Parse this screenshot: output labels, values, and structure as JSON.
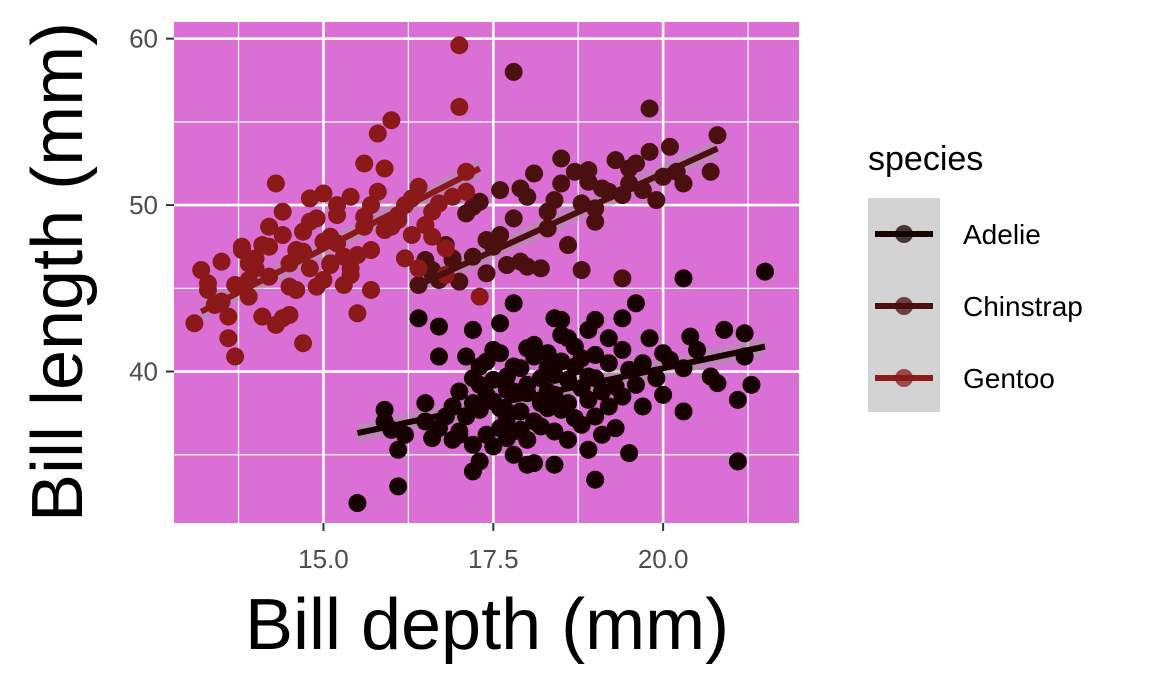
{
  "chart_data": {
    "type": "scatter",
    "xlabel": "Bill depth (mm)",
    "ylabel": "Bill length (mm)",
    "xlim": [
      12.8,
      22.0
    ],
    "ylim": [
      30.9,
      61.0
    ],
    "x_ticks": [
      15.0,
      17.5,
      20.0
    ],
    "x_tick_labels": [
      "15.0",
      "17.5",
      "20.0"
    ],
    "y_ticks": [
      40,
      50,
      60
    ],
    "y_tick_labels": [
      "40",
      "50",
      "60"
    ],
    "grid": true,
    "panel_background": "#da70d6",
    "grid_color": "#ffffff",
    "legend": {
      "title": "species",
      "position": "right",
      "key_background": "#d3d3d3"
    },
    "series": [
      {
        "name": "Adelie",
        "color": "#170000",
        "trend": {
          "x": [
            15.5,
            21.5
          ],
          "y": [
            36.3,
            41.5
          ]
        },
        "points": [
          [
            15.5,
            32.1
          ],
          [
            15.9,
            37.7
          ],
          [
            16.0,
            36.5
          ],
          [
            16.1,
            33.1
          ],
          [
            16.2,
            36.2
          ],
          [
            16.5,
            38.1
          ],
          [
            16.6,
            36.0
          ],
          [
            16.7,
            36.6
          ],
          [
            16.9,
            37.9
          ],
          [
            16.9,
            35.9
          ],
          [
            17.0,
            38.8
          ],
          [
            17.0,
            36.2
          ],
          [
            17.1,
            37.3
          ],
          [
            17.1,
            40.9
          ],
          [
            17.2,
            35.6
          ],
          [
            17.2,
            38.1
          ],
          [
            17.2,
            34.0
          ],
          [
            17.3,
            37.7
          ],
          [
            17.3,
            39.2
          ],
          [
            17.3,
            34.6
          ],
          [
            17.4,
            40.6
          ],
          [
            17.4,
            38.6
          ],
          [
            17.4,
            36.2
          ],
          [
            17.5,
            38.2
          ],
          [
            17.5,
            35.5
          ],
          [
            17.5,
            39.5
          ],
          [
            17.6,
            37.8
          ],
          [
            17.6,
            41.1
          ],
          [
            17.6,
            36.6
          ],
          [
            17.7,
            38.9
          ],
          [
            17.7,
            37.2
          ],
          [
            17.7,
            39.7
          ],
          [
            17.8,
            40.3
          ],
          [
            17.8,
            36.4
          ],
          [
            17.8,
            38.8
          ],
          [
            17.8,
            35.0
          ],
          [
            17.9,
            37.6
          ],
          [
            17.9,
            40.2
          ],
          [
            17.9,
            36.5
          ],
          [
            18.0,
            38.7
          ],
          [
            18.0,
            41.4
          ],
          [
            18.0,
            35.9
          ],
          [
            18.0,
            39.2
          ],
          [
            18.1,
            37.0
          ],
          [
            18.1,
            40.9
          ],
          [
            18.1,
            34.5
          ],
          [
            18.2,
            38.1
          ],
          [
            18.2,
            39.6
          ],
          [
            18.2,
            36.7
          ],
          [
            18.3,
            41.1
          ],
          [
            18.3,
            37.8
          ],
          [
            18.3,
            40.2
          ],
          [
            18.4,
            38.6
          ],
          [
            18.4,
            36.4
          ],
          [
            18.4,
            39.8
          ],
          [
            18.5,
            42.2
          ],
          [
            18.5,
            37.7
          ],
          [
            18.5,
            40.6
          ],
          [
            18.6,
            38.1
          ],
          [
            18.6,
            35.9
          ],
          [
            18.6,
            39.5
          ],
          [
            18.7,
            41.5
          ],
          [
            18.7,
            37.2
          ],
          [
            18.8,
            39.0
          ],
          [
            18.8,
            36.8
          ],
          [
            18.8,
            40.8
          ],
          [
            18.9,
            38.3
          ],
          [
            18.9,
            35.3
          ],
          [
            18.9,
            42.5
          ],
          [
            19.0,
            39.6
          ],
          [
            19.0,
            37.3
          ],
          [
            19.0,
            41.0
          ],
          [
            19.1,
            38.8
          ],
          [
            19.1,
            36.2
          ],
          [
            19.2,
            40.5
          ],
          [
            19.2,
            37.9
          ],
          [
            19.3,
            39.1
          ],
          [
            19.3,
            36.6
          ],
          [
            19.4,
            41.3
          ],
          [
            19.4,
            38.5
          ],
          [
            19.5,
            40.1
          ],
          [
            19.5,
            35.1
          ],
          [
            19.6,
            39.2
          ],
          [
            19.7,
            37.9
          ],
          [
            19.8,
            42.0
          ],
          [
            19.9,
            39.6
          ],
          [
            20.0,
            41.1
          ],
          [
            20.0,
            38.6
          ],
          [
            20.1,
            40.7
          ],
          [
            20.3,
            37.6
          ],
          [
            20.5,
            41.3
          ],
          [
            20.7,
            39.7
          ],
          [
            21.1,
            38.3
          ],
          [
            21.1,
            34.6
          ],
          [
            21.5,
            46.0
          ],
          [
            20.3,
            45.6
          ],
          [
            19.4,
            43.2
          ],
          [
            18.4,
            43.2
          ],
          [
            17.8,
            44.1
          ],
          [
            17.6,
            42.9
          ],
          [
            17.2,
            42.5
          ],
          [
            16.7,
            42.7
          ],
          [
            16.4,
            43.2
          ],
          [
            16.7,
            40.9
          ],
          [
            16.5,
            37.0
          ],
          [
            15.9,
            37.0
          ],
          [
            16.1,
            35.3
          ],
          [
            19.0,
            33.5
          ],
          [
            18.0,
            34.4
          ],
          [
            18.4,
            34.4
          ],
          [
            19.6,
            44.1
          ],
          [
            19.0,
            43.1
          ],
          [
            18.5,
            43.1
          ],
          [
            17.5,
            41.3
          ],
          [
            20.9,
            42.5
          ],
          [
            21.2,
            42.3
          ],
          [
            21.2,
            40.9
          ],
          [
            20.4,
            42.1
          ],
          [
            20.8,
            39.3
          ],
          [
            21.3,
            39.2
          ],
          [
            20.3,
            40.2
          ],
          [
            19.7,
            40.5
          ],
          [
            18.9,
            39.7
          ],
          [
            18.3,
            38.8
          ],
          [
            17.7,
            37.6
          ],
          [
            17.0,
            36.4
          ],
          [
            16.8,
            37.3
          ],
          [
            17.2,
            39.6
          ],
          [
            18.6,
            42.0
          ],
          [
            19.2,
            42.0
          ],
          [
            17.3,
            40.3
          ],
          [
            18.1,
            41.6
          ],
          [
            18.7,
            40.3
          ],
          [
            17.7,
            36.0
          ]
        ]
      },
      {
        "name": "Chinstrap",
        "color": "#4a0f0f",
        "trend": {
          "x": [
            16.4,
            20.8
          ],
          "y": [
            45.2,
            53.4
          ]
        },
        "points": [
          [
            16.4,
            45.2
          ],
          [
            16.5,
            46.7
          ],
          [
            16.6,
            46.1
          ],
          [
            16.7,
            45.5
          ],
          [
            16.8,
            47.6
          ],
          [
            16.9,
            46.8
          ],
          [
            17.0,
            45.4
          ],
          [
            17.1,
            49.5
          ],
          [
            17.2,
            46.9
          ],
          [
            17.3,
            50.2
          ],
          [
            17.4,
            45.9
          ],
          [
            17.5,
            47.5
          ],
          [
            17.6,
            50.9
          ],
          [
            17.7,
            46.4
          ],
          [
            17.8,
            49.2
          ],
          [
            17.9,
            46.6
          ],
          [
            18.0,
            50.5
          ],
          [
            18.1,
            51.9
          ],
          [
            18.2,
            46.2
          ],
          [
            18.3,
            49.6
          ],
          [
            18.4,
            50.3
          ],
          [
            18.5,
            51.3
          ],
          [
            18.6,
            47.6
          ],
          [
            18.7,
            52.0
          ],
          [
            18.8,
            50.1
          ],
          [
            18.9,
            51.4
          ],
          [
            19.0,
            49.0
          ],
          [
            19.1,
            51.0
          ],
          [
            19.2,
            50.8
          ],
          [
            19.3,
            52.7
          ],
          [
            19.4,
            50.6
          ],
          [
            19.5,
            51.3
          ],
          [
            19.6,
            52.5
          ],
          [
            19.7,
            50.9
          ],
          [
            19.8,
            55.8
          ],
          [
            19.9,
            50.3
          ],
          [
            20.0,
            51.7
          ],
          [
            20.1,
            53.5
          ],
          [
            20.3,
            51.3
          ],
          [
            20.7,
            52.0
          ],
          [
            20.8,
            54.2
          ],
          [
            17.6,
            48.2
          ],
          [
            18.0,
            46.3
          ],
          [
            18.8,
            46.1
          ],
          [
            19.4,
            45.6
          ],
          [
            17.2,
            49.9
          ],
          [
            18.3,
            48.6
          ],
          [
            19.0,
            49.8
          ],
          [
            18.5,
            52.8
          ],
          [
            18.9,
            52.1
          ],
          [
            19.5,
            52.2
          ],
          [
            20.2,
            52.0
          ],
          [
            19.8,
            53.2
          ],
          [
            17.9,
            51.0
          ],
          [
            16.9,
            46.7
          ],
          [
            16.6,
            45.9
          ],
          [
            17.4,
            47.9
          ],
          [
            17.8,
            58.0
          ]
        ]
      },
      {
        "name": "Gentoo",
        "color": "#8b1919",
        "trend": {
          "x": [
            13.2,
            17.3
          ],
          "y": [
            43.6,
            52.2
          ]
        },
        "points": [
          [
            13.1,
            42.9
          ],
          [
            13.2,
            46.1
          ],
          [
            13.3,
            44.9
          ],
          [
            13.4,
            44.0
          ],
          [
            13.5,
            46.6
          ],
          [
            13.6,
            42.0
          ],
          [
            13.7,
            40.9
          ],
          [
            13.8,
            47.3
          ],
          [
            13.9,
            44.5
          ],
          [
            14.0,
            46.8
          ],
          [
            14.1,
            47.6
          ],
          [
            14.2,
            48.7
          ],
          [
            14.3,
            42.8
          ],
          [
            14.4,
            49.6
          ],
          [
            14.5,
            46.5
          ],
          [
            14.6,
            47.3
          ],
          [
            14.7,
            41.7
          ],
          [
            14.8,
            49.0
          ],
          [
            14.9,
            45.1
          ],
          [
            15.0,
            50.7
          ],
          [
            15.1,
            46.4
          ],
          [
            15.2,
            49.4
          ],
          [
            15.3,
            45.2
          ],
          [
            15.4,
            50.5
          ],
          [
            15.5,
            47.0
          ],
          [
            15.6,
            49.3
          ],
          [
            15.7,
            44.9
          ],
          [
            15.8,
            50.8
          ],
          [
            15.9,
            48.5
          ],
          [
            16.0,
            55.1
          ],
          [
            16.1,
            49.4
          ],
          [
            16.2,
            50.0
          ],
          [
            16.3,
            48.2
          ],
          [
            16.4,
            51.1
          ],
          [
            16.5,
            48.8
          ],
          [
            16.6,
            49.6
          ],
          [
            16.7,
            50.1
          ],
          [
            16.8,
            47.4
          ],
          [
            16.9,
            50.5
          ],
          [
            17.0,
            59.6
          ],
          [
            17.0,
            55.9
          ],
          [
            17.1,
            52.0
          ],
          [
            17.3,
            44.5
          ],
          [
            13.5,
            44.2
          ],
          [
            13.9,
            45.5
          ],
          [
            14.2,
            45.7
          ],
          [
            14.5,
            43.4
          ],
          [
            14.8,
            46.2
          ],
          [
            15.1,
            48.1
          ],
          [
            15.4,
            46.2
          ],
          [
            15.7,
            50.0
          ],
          [
            14.0,
            46.2
          ],
          [
            14.6,
            44.9
          ],
          [
            15.0,
            47.8
          ],
          [
            13.7,
            45.2
          ],
          [
            14.4,
            48.2
          ],
          [
            15.2,
            50.0
          ],
          [
            15.5,
            43.5
          ],
          [
            15.8,
            54.3
          ],
          [
            16.1,
            49.1
          ],
          [
            16.2,
            46.8
          ],
          [
            15.6,
            52.5
          ],
          [
            15.9,
            52.2
          ],
          [
            14.3,
            51.3
          ],
          [
            14.9,
            49.2
          ],
          [
            14.1,
            43.3
          ],
          [
            16.6,
            48.1
          ],
          [
            13.8,
            47.5
          ],
          [
            14.7,
            48.4
          ],
          [
            15.3,
            46.9
          ],
          [
            15.0,
            45.5
          ],
          [
            14.4,
            43.2
          ],
          [
            14.8,
            50.4
          ],
          [
            15.6,
            48.7
          ],
          [
            16.0,
            48.7
          ],
          [
            16.4,
            46.2
          ],
          [
            16.8,
            45.8
          ],
          [
            17.1,
            50.8
          ],
          [
            13.3,
            45.3
          ],
          [
            13.6,
            43.3
          ],
          [
            13.9,
            46.5
          ],
          [
            14.2,
            47.5
          ],
          [
            14.5,
            45.1
          ],
          [
            14.7,
            47.2
          ],
          [
            15.1,
            46.5
          ],
          [
            15.2,
            47.7
          ],
          [
            15.4,
            45.8
          ],
          [
            15.7,
            47.3
          ],
          [
            16.3,
            50.4
          ]
        ]
      }
    ]
  }
}
